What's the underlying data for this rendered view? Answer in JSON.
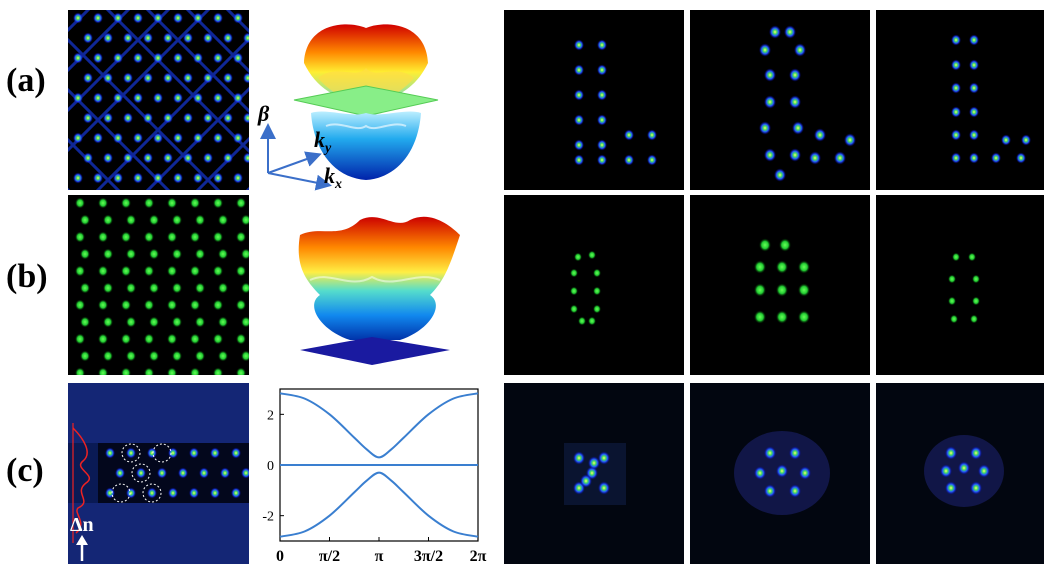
{
  "row_labels": [
    "(a)",
    "(b)",
    "(c)"
  ],
  "axes_3d": {
    "beta": "β",
    "ky_base": "k",
    "ky_sub": "y",
    "kx_base": "k",
    "kx_sub": "x"
  },
  "panel_c_annotation": "Δn",
  "chart_data": {
    "type": "line",
    "title": "",
    "xlabel": "",
    "ylabel": "",
    "xlim": [
      0,
      6.2832
    ],
    "ylim": [
      -3,
      3
    ],
    "xtick_labels": [
      "0",
      "π/2",
      "π",
      "3π/2",
      "2π"
    ],
    "xticks": [
      0,
      1.5708,
      3.1416,
      4.7124,
      6.2832
    ],
    "ytick_labels": [
      "2",
      "0",
      "-2"
    ],
    "yticks": [
      2,
      0,
      -2
    ],
    "series": [
      {
        "x": [
          0,
          0.785,
          1.571,
          2.356,
          2.749,
          3.142,
          3.534,
          3.927,
          4.712,
          5.498,
          6.283
        ],
        "y": [
          2.83,
          2.62,
          2.0,
          1.08,
          0.62,
          0.3,
          0.62,
          1.08,
          2.0,
          2.62,
          2.83
        ]
      },
      {
        "x": [
          0,
          6.283
        ],
        "y": [
          0,
          0
        ]
      },
      {
        "x": [
          0,
          0.785,
          1.571,
          2.356,
          2.749,
          3.142,
          3.534,
          3.927,
          4.712,
          5.498,
          6.283
        ],
        "y": [
          -2.83,
          -2.62,
          -2.0,
          -1.08,
          -0.62,
          -0.3,
          -0.62,
          -1.08,
          -2.0,
          -2.62,
          -2.83
        ]
      }
    ]
  }
}
